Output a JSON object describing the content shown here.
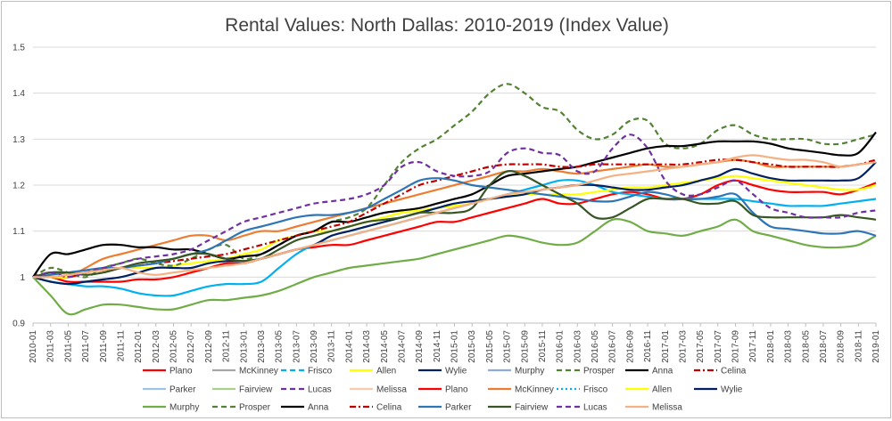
{
  "chart_data": {
    "type": "line",
    "title": "Rental Values: North Dallas: 2010-2019 (Index Value)",
    "xlabel": "",
    "ylabel": "",
    "ylim": [
      0.9,
      1.5
    ],
    "yticks": [
      "0.9",
      "1",
      "1.1",
      "1.2",
      "1.3",
      "1.4",
      "1.5"
    ],
    "grid": true,
    "legend_position": "bottom",
    "x": [
      "2010-01",
      "2011-03",
      "2011-05",
      "2011-07",
      "2011-09",
      "2011-11",
      "2012-01",
      "2012-03",
      "2012-05",
      "2012-07",
      "2012-09",
      "2012-11",
      "2013-01",
      "2013-03",
      "2013-05",
      "2013-07",
      "2013-09",
      "2013-11",
      "2014-01",
      "2014-03",
      "2014-05",
      "2014-07",
      "2014-09",
      "2014-11",
      "2015-01",
      "2015-03",
      "2015-05",
      "2015-07",
      "2015-09",
      "2015-11",
      "2016-01",
      "2016-03",
      "2016-05",
      "2016-07",
      "2016-09",
      "2016-11",
      "2017-01",
      "2017-03",
      "2017-05",
      "2017-07",
      "2017-09",
      "2017-11",
      "2018-01",
      "2018-03",
      "2018-05",
      "2018-07",
      "2018-09",
      "2018-11",
      "2019-01"
    ],
    "series": [
      {
        "name": "Plano",
        "color": "#ff0000",
        "dash": "solid",
        "values": [
          1.0,
          1.0,
          0.99,
          0.99,
          0.99,
          0.99,
          0.995,
          0.995,
          1.0,
          1.01,
          1.02,
          1.03,
          1.03,
          1.04,
          1.05,
          1.06,
          1.065,
          1.07,
          1.07,
          1.08,
          1.09,
          1.1,
          1.11,
          1.12,
          1.12,
          1.13,
          1.14,
          1.15,
          1.16,
          1.17,
          1.16,
          1.16,
          1.17,
          1.18,
          1.185,
          1.18,
          1.17,
          1.17,
          1.18,
          1.2,
          1.21,
          1.2,
          1.19,
          1.185,
          1.185,
          1.185,
          1.18,
          1.19,
          1.205
        ]
      },
      {
        "name": "McKinney",
        "color": "#ed7d31",
        "dash": "solid",
        "values": [
          1.0,
          1.0,
          1.0,
          1.02,
          1.04,
          1.05,
          1.06,
          1.07,
          1.08,
          1.09,
          1.09,
          1.08,
          1.09,
          1.1,
          1.1,
          1.11,
          1.12,
          1.13,
          1.14,
          1.15,
          1.16,
          1.17,
          1.18,
          1.19,
          1.2,
          1.21,
          1.22,
          1.23,
          1.23,
          1.235,
          1.23,
          1.225,
          1.23,
          1.235,
          1.24,
          1.245,
          1.24,
          1.24,
          1.245,
          1.25,
          1.255,
          1.25,
          1.24,
          1.24,
          1.24,
          1.24,
          1.24,
          1.245,
          1.25
        ]
      },
      {
        "name": "Frisco",
        "color": "#00b0f0",
        "dash": "solid",
        "values": [
          1.0,
          0.99,
          0.985,
          0.98,
          0.98,
          0.975,
          0.965,
          0.96,
          0.96,
          0.97,
          0.98,
          0.985,
          0.985,
          0.99,
          1.02,
          1.05,
          1.07,
          1.08,
          1.09,
          1.1,
          1.11,
          1.12,
          1.13,
          1.14,
          1.15,
          1.16,
          1.17,
          1.18,
          1.19,
          1.2,
          1.21,
          1.21,
          1.2,
          1.185,
          1.18,
          1.175,
          1.17,
          1.17,
          1.17,
          1.17,
          1.17,
          1.165,
          1.16,
          1.155,
          1.155,
          1.155,
          1.16,
          1.165,
          1.17
        ]
      },
      {
        "name": "Allen",
        "color": "#ffff00",
        "dash": "solid",
        "values": [
          1.0,
          1.0,
          1.0,
          1.01,
          1.015,
          1.02,
          1.02,
          1.02,
          1.025,
          1.03,
          1.035,
          1.04,
          1.05,
          1.06,
          1.08,
          1.09,
          1.1,
          1.1,
          1.11,
          1.12,
          1.13,
          1.14,
          1.145,
          1.15,
          1.155,
          1.16,
          1.17,
          1.175,
          1.18,
          1.18,
          1.18,
          1.18,
          1.185,
          1.19,
          1.195,
          1.195,
          1.2,
          1.205,
          1.21,
          1.215,
          1.22,
          1.215,
          1.21,
          1.205,
          1.2,
          1.195,
          1.19,
          1.19,
          1.2
        ]
      },
      {
        "name": "Wylie",
        "color": "#002060",
        "dash": "solid",
        "values": [
          1.0,
          0.99,
          0.985,
          0.99,
          0.995,
          1.0,
          1.01,
          1.02,
          1.02,
          1.02,
          1.03,
          1.035,
          1.035,
          1.04,
          1.05,
          1.06,
          1.07,
          1.09,
          1.1,
          1.11,
          1.12,
          1.13,
          1.14,
          1.15,
          1.16,
          1.165,
          1.17,
          1.175,
          1.18,
          1.19,
          1.195,
          1.2,
          1.2,
          1.195,
          1.19,
          1.19,
          1.195,
          1.2,
          1.21,
          1.22,
          1.235,
          1.225,
          1.215,
          1.21,
          1.21,
          1.21,
          1.21,
          1.215,
          1.25
        ]
      },
      {
        "name": "Murphy",
        "color": "#70ad47",
        "dash": "solid",
        "values": [
          1.0,
          0.96,
          0.92,
          0.93,
          0.94,
          0.94,
          0.935,
          0.93,
          0.93,
          0.94,
          0.95,
          0.95,
          0.955,
          0.96,
          0.97,
          0.985,
          1.0,
          1.01,
          1.02,
          1.025,
          1.03,
          1.035,
          1.04,
          1.05,
          1.06,
          1.07,
          1.08,
          1.09,
          1.085,
          1.075,
          1.07,
          1.075,
          1.1,
          1.125,
          1.12,
          1.1,
          1.095,
          1.09,
          1.1,
          1.11,
          1.125,
          1.1,
          1.09,
          1.08,
          1.07,
          1.065,
          1.065,
          1.07,
          1.09
        ]
      },
      {
        "name": "Prosper",
        "color": "#548235",
        "dash": "dash",
        "values": [
          1.0,
          1.02,
          1.01,
          1.0,
          1.02,
          1.03,
          1.04,
          1.03,
          1.025,
          1.04,
          1.06,
          1.07,
          1.04,
          1.05,
          1.07,
          1.09,
          1.1,
          1.12,
          1.13,
          1.15,
          1.2,
          1.25,
          1.28,
          1.3,
          1.33,
          1.36,
          1.4,
          1.42,
          1.4,
          1.37,
          1.36,
          1.32,
          1.3,
          1.31,
          1.34,
          1.34,
          1.29,
          1.28,
          1.29,
          1.32,
          1.33,
          1.31,
          1.3,
          1.3,
          1.3,
          1.29,
          1.29,
          1.3,
          1.31
        ]
      },
      {
        "name": "Anna",
        "color": "#000000",
        "dash": "solid",
        "values": [
          1.0,
          1.05,
          1.05,
          1.06,
          1.07,
          1.07,
          1.065,
          1.065,
          1.06,
          1.06,
          1.05,
          1.04,
          1.045,
          1.05,
          1.07,
          1.09,
          1.1,
          1.12,
          1.12,
          1.13,
          1.14,
          1.145,
          1.15,
          1.16,
          1.17,
          1.18,
          1.2,
          1.22,
          1.225,
          1.23,
          1.235,
          1.24,
          1.25,
          1.26,
          1.27,
          1.28,
          1.285,
          1.285,
          1.29,
          1.295,
          1.295,
          1.295,
          1.29,
          1.28,
          1.275,
          1.27,
          1.265,
          1.27,
          1.315
        ]
      },
      {
        "name": "Celina",
        "color": "#c00000",
        "dash": "dashdot",
        "values": [
          1.0,
          1.01,
          1.0,
          1.01,
          1.015,
          1.02,
          1.025,
          1.03,
          1.035,
          1.04,
          1.045,
          1.05,
          1.06,
          1.07,
          1.08,
          1.09,
          1.1,
          1.11,
          1.12,
          1.14,
          1.16,
          1.18,
          1.2,
          1.21,
          1.22,
          1.23,
          1.24,
          1.245,
          1.245,
          1.245,
          1.24,
          1.24,
          1.245,
          1.245,
          1.245,
          1.245,
          1.245,
          1.245,
          1.25,
          1.255,
          1.255,
          1.25,
          1.245,
          1.24,
          1.24,
          1.24,
          1.24,
          1.245,
          1.255
        ]
      },
      {
        "name": "Parker",
        "color": "#2e75b6",
        "dash": "solid",
        "values": [
          1.0,
          1.005,
          1.01,
          1.015,
          1.02,
          1.02,
          1.025,
          1.03,
          1.04,
          1.05,
          1.06,
          1.08,
          1.1,
          1.11,
          1.12,
          1.13,
          1.135,
          1.135,
          1.14,
          1.15,
          1.17,
          1.19,
          1.21,
          1.215,
          1.21,
          1.2,
          1.195,
          1.19,
          1.185,
          1.18,
          1.175,
          1.17,
          1.165,
          1.165,
          1.175,
          1.185,
          1.18,
          1.17,
          1.17,
          1.175,
          1.18,
          1.14,
          1.11,
          1.105,
          1.1,
          1.095,
          1.095,
          1.1,
          1.09
        ]
      },
      {
        "name": "Fairview",
        "color": "#375623",
        "dash": "solid",
        "values": [
          1.0,
          1.01,
          1.01,
          1.005,
          1.01,
          1.02,
          1.03,
          1.035,
          1.04,
          1.05,
          1.05,
          1.04,
          1.035,
          1.04,
          1.06,
          1.08,
          1.09,
          1.1,
          1.11,
          1.12,
          1.125,
          1.13,
          1.14,
          1.14,
          1.14,
          1.15,
          1.2,
          1.23,
          1.22,
          1.2,
          1.18,
          1.16,
          1.13,
          1.13,
          1.15,
          1.17,
          1.17,
          1.17,
          1.16,
          1.16,
          1.165,
          1.135,
          1.13,
          1.13,
          1.13,
          1.13,
          1.135,
          1.13,
          1.125
        ]
      },
      {
        "name": "Lucas",
        "color": "#7030a0",
        "dash": "dash",
        "values": [
          1.0,
          1.01,
          1.0,
          1.01,
          1.02,
          1.03,
          1.04,
          1.045,
          1.05,
          1.06,
          1.08,
          1.1,
          1.12,
          1.13,
          1.14,
          1.15,
          1.16,
          1.165,
          1.17,
          1.18,
          1.2,
          1.24,
          1.25,
          1.23,
          1.22,
          1.22,
          1.23,
          1.27,
          1.28,
          1.27,
          1.265,
          1.23,
          1.23,
          1.28,
          1.31,
          1.28,
          1.21,
          1.18,
          1.18,
          1.195,
          1.21,
          1.18,
          1.15,
          1.14,
          1.13,
          1.13,
          1.13,
          1.14,
          1.145
        ]
      },
      {
        "name": "Melissa",
        "color": "#f4b183",
        "dash": "solid",
        "values": [
          1.0,
          1.0,
          1.005,
          1.01,
          1.015,
          1.02,
          1.01,
          1.005,
          1.01,
          1.015,
          1.02,
          1.025,
          1.03,
          1.04,
          1.05,
          1.06,
          1.07,
          1.08,
          1.09,
          1.1,
          1.11,
          1.12,
          1.13,
          1.14,
          1.15,
          1.16,
          1.17,
          1.18,
          1.185,
          1.19,
          1.195,
          1.2,
          1.21,
          1.22,
          1.225,
          1.23,
          1.235,
          1.24,
          1.245,
          1.25,
          1.26,
          1.265,
          1.26,
          1.255,
          1.255,
          1.25,
          1.24,
          1.245,
          1.25
        ]
      }
    ],
    "legend": [
      {
        "label": "Plano",
        "color": "#ff0000",
        "dash": "solid"
      },
      {
        "label": "McKinney",
        "color": "#a5a5a5",
        "dash": "solid"
      },
      {
        "label": "Frisco",
        "color": "#00b0f0",
        "dash": "dash"
      },
      {
        "label": "Allen",
        "color": "#ffff00",
        "dash": "solid"
      },
      {
        "label": "Wylie",
        "color": "#002060",
        "dash": "solid"
      },
      {
        "label": "Murphy",
        "color": "#8ea9db",
        "dash": "solid"
      },
      {
        "label": "Prosper",
        "color": "#548235",
        "dash": "dash"
      },
      {
        "label": "Anna",
        "color": "#000000",
        "dash": "solid"
      },
      {
        "label": "Celina",
        "color": "#c00000",
        "dash": "dashdot"
      },
      {
        "label": "Parker",
        "color": "#9dc3e6",
        "dash": "solid"
      },
      {
        "label": "Fairview",
        "color": "#a9d18e",
        "dash": "solid"
      },
      {
        "label": "Lucas",
        "color": "#7030a0",
        "dash": "dash"
      },
      {
        "label": "Melissa",
        "color": "#f8cbad",
        "dash": "solid"
      },
      {
        "label": "Plano",
        "color": "#ff0000",
        "dash": "solid"
      },
      {
        "label": "McKinney",
        "color": "#ed7d31",
        "dash": "solid"
      },
      {
        "label": "Frisco",
        "color": "#00b0f0",
        "dash": "dot"
      },
      {
        "label": "Allen",
        "color": "#ffff00",
        "dash": "solid"
      },
      {
        "label": "Wylie",
        "color": "#002060",
        "dash": "solid"
      },
      {
        "label": "Murphy",
        "color": "#70ad47",
        "dash": "solid"
      },
      {
        "label": "Prosper",
        "color": "#548235",
        "dash": "dash"
      },
      {
        "label": "Anna",
        "color": "#000000",
        "dash": "solid"
      },
      {
        "label": "Celina",
        "color": "#c00000",
        "dash": "dashdot"
      },
      {
        "label": "Parker",
        "color": "#2e75b6",
        "dash": "solid"
      },
      {
        "label": "Fairview",
        "color": "#375623",
        "dash": "solid"
      },
      {
        "label": "Lucas",
        "color": "#7030a0",
        "dash": "dash"
      },
      {
        "label": "Melissa",
        "color": "#f4b183",
        "dash": "solid"
      }
    ]
  }
}
